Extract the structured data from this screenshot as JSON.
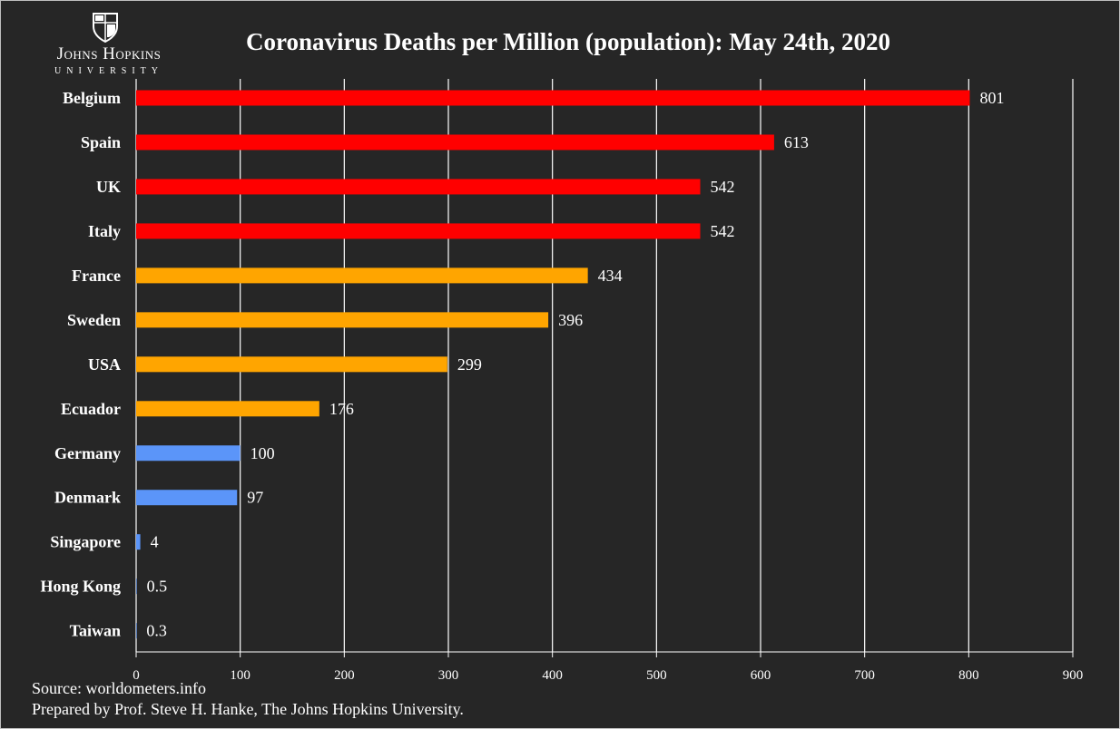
{
  "logo": {
    "name": "Johns Hopkins",
    "sub": "UNIVERSITY"
  },
  "source": "Source: worldometers.info",
  "prepared_by": "Prepared by Prof. Steve H. Hanke, The Johns Hopkins University.",
  "colors": {
    "background": "#262626",
    "high": "#ff0000",
    "mid": "#ffa500",
    "low": "#5b95f9",
    "grid": "#ffffff",
    "text": "#ffffff"
  },
  "chart_data": {
    "type": "bar",
    "orientation": "horizontal",
    "title": "Coronavirus Deaths per Million (population): May 24th, 2020",
    "xlabel": "",
    "ylabel": "",
    "categories": [
      "Belgium",
      "Spain",
      "UK",
      "Italy",
      "France",
      "Sweden",
      "USA",
      "Ecuador",
      "Germany",
      "Denmark",
      "Singapore",
      "Hong Kong",
      "Taiwan"
    ],
    "values": [
      801,
      613,
      542,
      542,
      434,
      396,
      299,
      176,
      100,
      97,
      4,
      0.5,
      0.3
    ],
    "value_labels": [
      "801",
      "613",
      "542",
      "542",
      "434",
      "396",
      "299",
      "176",
      "100",
      "97",
      "4",
      "0.5",
      "0.3"
    ],
    "bar_colors": [
      "#ff0000",
      "#ff0000",
      "#ff0000",
      "#ff0000",
      "#ffa500",
      "#ffa500",
      "#ffa500",
      "#ffa500",
      "#5b95f9",
      "#5b95f9",
      "#5b95f9",
      "#5b95f9",
      "#5b95f9"
    ],
    "xlim": [
      0,
      900
    ],
    "xticks": [
      0,
      100,
      200,
      300,
      400,
      500,
      600,
      700,
      800,
      900
    ],
    "grid": "vertical",
    "legend": "none"
  }
}
